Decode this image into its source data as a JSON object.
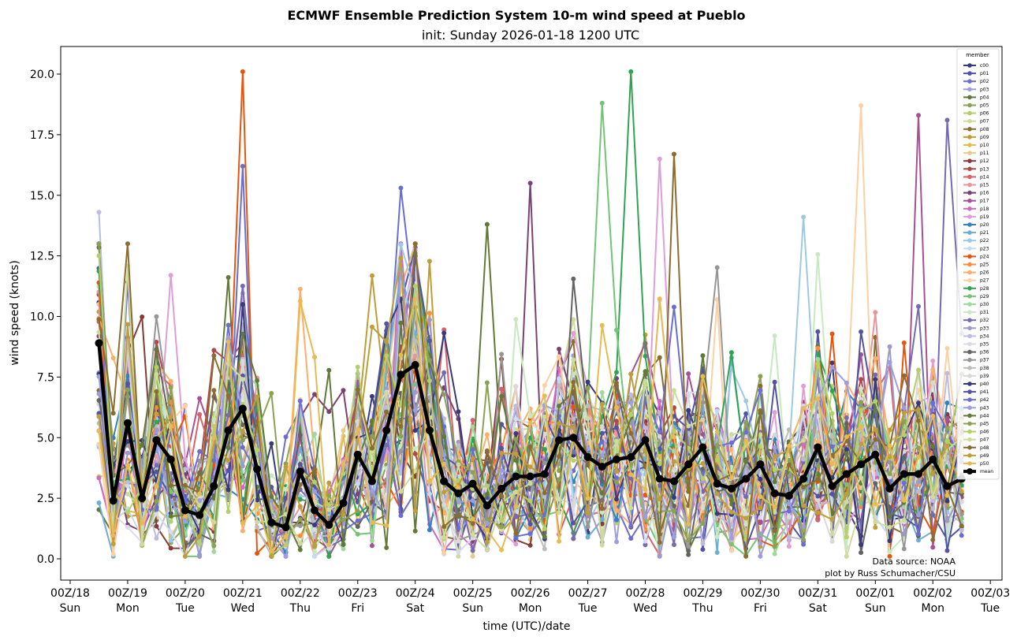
{
  "chart_data": {
    "type": "line",
    "title": "ECMWF Ensemble Prediction System 10-m wind speed at Pueblo",
    "subtitle": "init: Sunday 2026-01-18 1200 UTC",
    "xlabel": "time (UTC)/date",
    "ylabel": "wind speed (knots)",
    "ylim": [
      -0.8,
      21.1
    ],
    "xlim_days": [
      -0.3,
      16.25
    ],
    "y_ticks": [
      0.0,
      2.5,
      5.0,
      7.5,
      10.0,
      12.5,
      15.0,
      17.5,
      20.0
    ],
    "y_tick_labels": [
      "0.0",
      "2.5",
      "5.0",
      "7.5",
      "10.0",
      "12.5",
      "15.0",
      "17.5",
      "20.0"
    ],
    "x_ticks": [
      {
        "day": 0,
        "label1": "00Z/18",
        "label2": "Sun"
      },
      {
        "day": 1,
        "label1": "00Z/19",
        "label2": "Mon"
      },
      {
        "day": 2,
        "label1": "00Z/20",
        "label2": "Tue"
      },
      {
        "day": 3,
        "label1": "00Z/21",
        "label2": "Wed"
      },
      {
        "day": 4,
        "label1": "00Z/22",
        "label2": "Thu"
      },
      {
        "day": 5,
        "label1": "00Z/23",
        "label2": "Fri"
      },
      {
        "day": 6,
        "label1": "00Z/24",
        "label2": "Sat"
      },
      {
        "day": 7,
        "label1": "00Z/25",
        "label2": "Sun"
      },
      {
        "day": 8,
        "label1": "00Z/26",
        "label2": "Mon"
      },
      {
        "day": 9,
        "label1": "00Z/27",
        "label2": "Tue"
      },
      {
        "day": 10,
        "label1": "00Z/28",
        "label2": "Wed"
      },
      {
        "day": 11,
        "label1": "00Z/29",
        "label2": "Thu"
      },
      {
        "day": 12,
        "label1": "00Z/30",
        "label2": "Fri"
      },
      {
        "day": 13,
        "label1": "00Z/31",
        "label2": "Sat"
      },
      {
        "day": 14,
        "label1": "00Z/01",
        "label2": "Sun"
      },
      {
        "day": 15,
        "label1": "00Z/02",
        "label2": "Mon"
      },
      {
        "day": 16,
        "label1": "00Z/03",
        "label2": "Tue"
      }
    ],
    "time_start_day": 0.5,
    "time_step_hours": 6,
    "legend": {
      "title": "member",
      "placement": "top-right"
    },
    "mean": {
      "name": "mean",
      "color": "#000000",
      "values": [
        8.9,
        2.4,
        5.6,
        2.5,
        4.9,
        4.1,
        2.0,
        1.8,
        3.0,
        5.3,
        6.2,
        3.7,
        1.5,
        1.3,
        3.6,
        2.0,
        1.4,
        2.3,
        4.3,
        3.2,
        5.3,
        7.6,
        8.0,
        5.3,
        3.2,
        2.7,
        3.1,
        2.2,
        2.9,
        3.4,
        3.4,
        3.5,
        4.9,
        5.0,
        4.2,
        3.8,
        4.1,
        4.2,
        4.9,
        3.3,
        3.2,
        3.9,
        4.6,
        3.1,
        2.9,
        3.3,
        3.9,
        2.7,
        2.6,
        3.3,
        4.6,
        3.0,
        3.5,
        3.9,
        4.3,
        2.9,
        3.5,
        3.5,
        4.1,
        3.0,
        3.3
      ]
    },
    "members": [
      {
        "name": "c00",
        "color": "#393b79"
      },
      {
        "name": "p01",
        "color": "#5254a3"
      },
      {
        "name": "p02",
        "color": "#6b6ecf"
      },
      {
        "name": "p03",
        "color": "#9c9ede"
      },
      {
        "name": "p04",
        "color": "#637939"
      },
      {
        "name": "p05",
        "color": "#8ca252"
      },
      {
        "name": "p06",
        "color": "#b5cf6b"
      },
      {
        "name": "p07",
        "color": "#cedb9c"
      },
      {
        "name": "p08",
        "color": "#8c6d31"
      },
      {
        "name": "p09",
        "color": "#bd9e39"
      },
      {
        "name": "p10",
        "color": "#e7ba52"
      },
      {
        "name": "p11",
        "color": "#e7cb94"
      },
      {
        "name": "p12",
        "color": "#843c39"
      },
      {
        "name": "p13",
        "color": "#ad494a"
      },
      {
        "name": "p14",
        "color": "#d6616b"
      },
      {
        "name": "p15",
        "color": "#e7969c"
      },
      {
        "name": "p16",
        "color": "#7b4173"
      },
      {
        "name": "p17",
        "color": "#a55194"
      },
      {
        "name": "p18",
        "color": "#ce6dbd"
      },
      {
        "name": "p19",
        "color": "#de9ed6"
      },
      {
        "name": "p20",
        "color": "#3182bd"
      },
      {
        "name": "p21",
        "color": "#6baed6"
      },
      {
        "name": "p22",
        "color": "#9ecae1"
      },
      {
        "name": "p23",
        "color": "#c6dbef"
      },
      {
        "name": "p24",
        "color": "#e6550d"
      },
      {
        "name": "p25",
        "color": "#fd8d3c"
      },
      {
        "name": "p26",
        "color": "#fdae6b"
      },
      {
        "name": "p27",
        "color": "#fdd0a2"
      },
      {
        "name": "p28",
        "color": "#31a354"
      },
      {
        "name": "p29",
        "color": "#74c476"
      },
      {
        "name": "p30",
        "color": "#a1d99b"
      },
      {
        "name": "p31",
        "color": "#c7e9c0"
      },
      {
        "name": "p32",
        "color": "#756bb1"
      },
      {
        "name": "p33",
        "color": "#9e9ac8"
      },
      {
        "name": "p34",
        "color": "#bcbddc"
      },
      {
        "name": "p35",
        "color": "#dadaeb"
      },
      {
        "name": "p36",
        "color": "#636363"
      },
      {
        "name": "p37",
        "color": "#969696"
      },
      {
        "name": "p38",
        "color": "#bdbdbd"
      },
      {
        "name": "p39",
        "color": "#d9d9d9"
      },
      {
        "name": "p40",
        "color": "#393b79"
      },
      {
        "name": "p41",
        "color": "#5254a3"
      },
      {
        "name": "p42",
        "color": "#6b6ecf"
      },
      {
        "name": "p43",
        "color": "#9c9ede"
      },
      {
        "name": "p44",
        "color": "#637939"
      },
      {
        "name": "p45",
        "color": "#8ca252"
      },
      {
        "name": "p46",
        "color": "#b5cf6b"
      },
      {
        "name": "p47",
        "color": "#cedb9c"
      },
      {
        "name": "p48",
        "color": "#8c6d31"
      },
      {
        "name": "p49",
        "color": "#bd9e39"
      },
      {
        "name": "p50",
        "color": "#e7ba52"
      }
    ],
    "notable_member_peaks": [
      {
        "member": "p24",
        "step": 10,
        "value": 20.1
      },
      {
        "member": "p02",
        "step": 10,
        "value": 16.2
      },
      {
        "member": "p28",
        "step": 37,
        "value": 20.1
      },
      {
        "member": "p29",
        "step": 35,
        "value": 18.8
      },
      {
        "member": "p27",
        "step": 53,
        "value": 18.7
      },
      {
        "member": "p17",
        "step": 57,
        "value": 18.3
      },
      {
        "member": "p32",
        "step": 59,
        "value": 18.1
      },
      {
        "member": "p48",
        "step": 40,
        "value": 16.7
      },
      {
        "member": "p19",
        "step": 39,
        "value": 16.5
      },
      {
        "member": "p16",
        "step": 30,
        "value": 15.5
      },
      {
        "member": "p02",
        "step": 21,
        "value": 15.3
      },
      {
        "member": "p22",
        "step": 49,
        "value": 14.1
      },
      {
        "member": "p04",
        "step": 27,
        "value": 13.8
      },
      {
        "member": "p34",
        "step": 0,
        "value": 14.3
      }
    ],
    "annotations": [
      "Data source: NOAA",
      "plot by Russ Schumacher/CSU"
    ]
  }
}
